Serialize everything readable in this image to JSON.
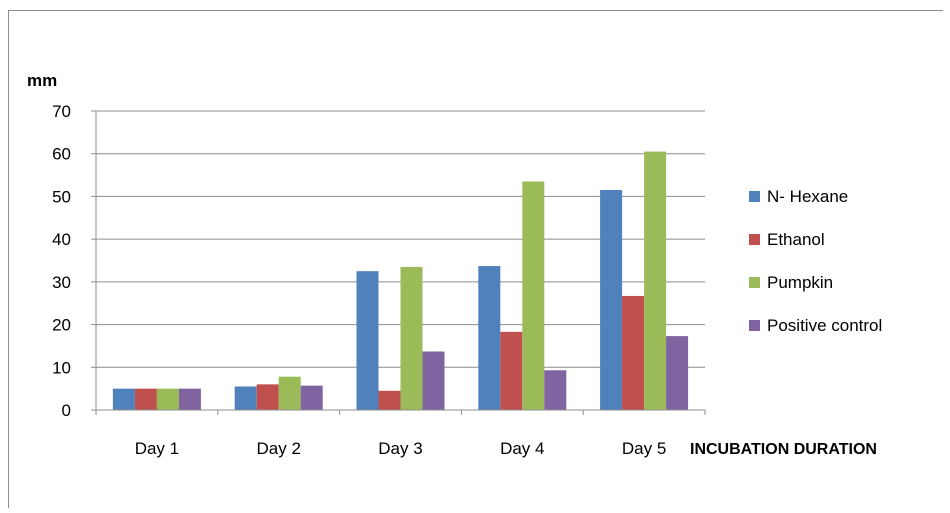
{
  "chart_data": {
    "type": "bar",
    "title": "",
    "ylabel": "mm",
    "xlabel": "INCUBATION DURATION",
    "ylim": [
      0,
      70
    ],
    "yticks": [
      0,
      10,
      20,
      30,
      40,
      50,
      60,
      70
    ],
    "grid": true,
    "legend_position": "right",
    "categories": [
      "Day 1",
      "Day 2",
      "Day 3",
      "Day 4",
      "Day 5"
    ],
    "series": [
      {
        "name": "N- Hexane",
        "color": "#4f81bd",
        "values": [
          5,
          5.5,
          32.5,
          33.7,
          51.5
        ]
      },
      {
        "name": "Ethanol",
        "color": "#c0504d",
        "values": [
          5,
          6,
          4.5,
          18.3,
          26.7
        ]
      },
      {
        "name": "Pumpkin",
        "color": "#9bbb59",
        "values": [
          5,
          7.8,
          33.5,
          53.5,
          60.5
        ]
      },
      {
        "name": "Positive control",
        "color": "#8064a2",
        "values": [
          5,
          5.7,
          13.7,
          9.3,
          17.3
        ]
      }
    ]
  }
}
